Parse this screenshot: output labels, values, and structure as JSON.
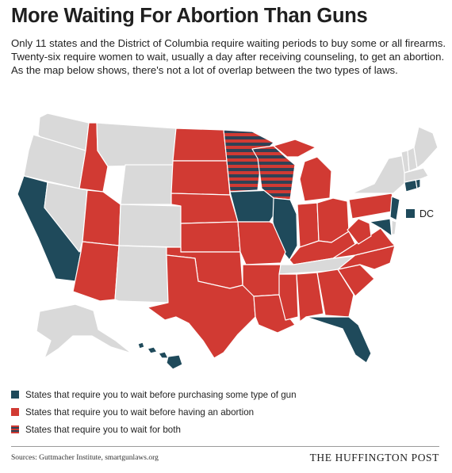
{
  "title": "More Waiting For Abortion Than Guns",
  "intro": "Only 11 states and the District of Columbia require waiting periods to buy some or all firearms. Twenty-six require women to wait, usually a day after receiving counseling, to get an abortion. As the map below shows, there's not a lot of overlap between the two types of laws.",
  "map": {
    "dc_label": "DC",
    "colors": {
      "gun": "#1f4a5b",
      "abortion": "#d13a33",
      "both_stripe_a": "#d13a33",
      "both_stripe_b": "#2f4255",
      "none": "#d9d9d9"
    }
  },
  "legend": [
    {
      "category": "gun",
      "label": "States that require you to wait before purchasing some type of gun"
    },
    {
      "category": "abortion",
      "label": "States that require you to wait before having an abortion"
    },
    {
      "category": "both",
      "label": "States that require you to wait for both"
    }
  ],
  "footer": {
    "sources": "Sources: Guttmacher Institute, smartgunlaws.org",
    "brand": "THE HUFFINGTON POST"
  }
}
